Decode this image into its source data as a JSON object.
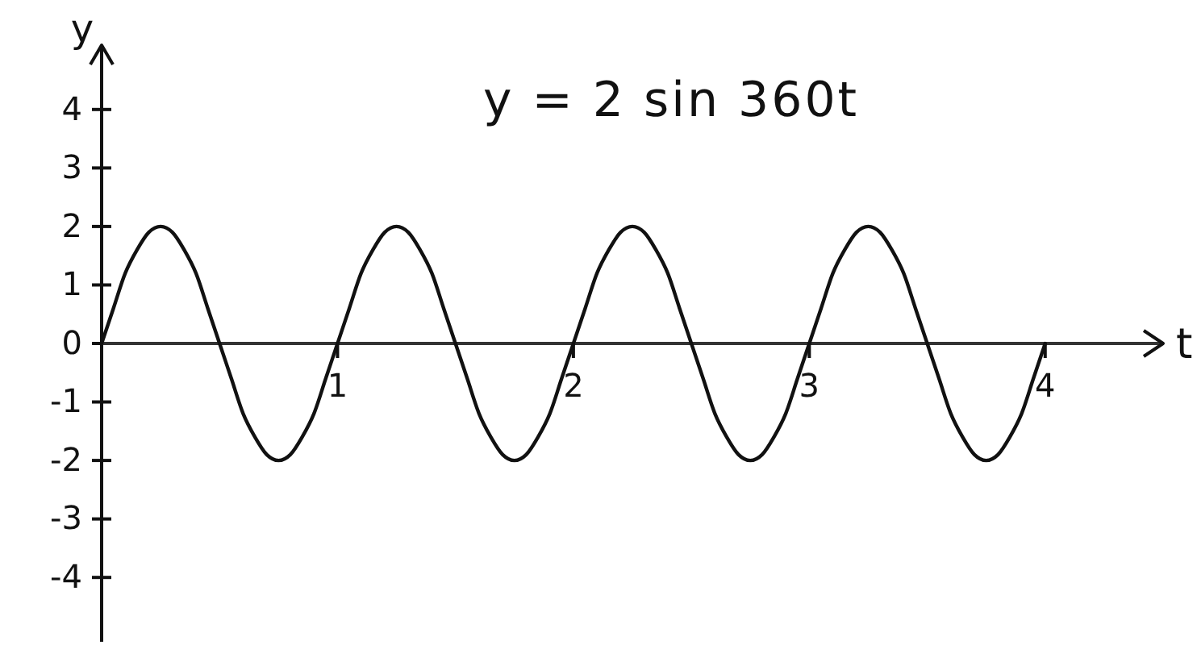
{
  "chart_data": {
    "type": "line",
    "title": "y = 2 sin 360t",
    "xlabel": "t",
    "ylabel": "y",
    "x": [
      0,
      0.05,
      0.1,
      0.15,
      0.2,
      0.25,
      0.3,
      0.35,
      0.4,
      0.45,
      0.5,
      0.55,
      0.6,
      0.65,
      0.7,
      0.75,
      0.8,
      0.85,
      0.9,
      0.95,
      1,
      1.05,
      1.1,
      1.15,
      1.2,
      1.25,
      1.3,
      1.35,
      1.4,
      1.45,
      1.5,
      1.55,
      1.6,
      1.65,
      1.7,
      1.75,
      1.8,
      1.85,
      1.9,
      1.95,
      2,
      2.05,
      2.1,
      2.15,
      2.2,
      2.25,
      2.3,
      2.35,
      2.4,
      2.45,
      2.5,
      2.55,
      2.6,
      2.65,
      2.7,
      2.75,
      2.8,
      2.85,
      2.9,
      2.95,
      3,
      3.05,
      3.1,
      3.15,
      3.2,
      3.25,
      3.3,
      3.35,
      3.4,
      3.45,
      3.5,
      3.55,
      3.6,
      3.65,
      3.7,
      3.75,
      3.8,
      3.85,
      3.9,
      3.95,
      4
    ],
    "series": [
      {
        "color": "#111111",
        "values": [
          0,
          0.6,
          1.2,
          1.6,
          1.9,
          2,
          1.9,
          1.6,
          1.2,
          0.6,
          0,
          -0.6,
          -1.2,
          -1.6,
          -1.9,
          -2,
          -1.9,
          -1.6,
          -1.2,
          -0.6,
          0,
          0.6,
          1.2,
          1.6,
          1.9,
          2,
          1.9,
          1.6,
          1.2,
          0.6,
          0,
          -0.6,
          -1.2,
          -1.6,
          -1.9,
          -2,
          -1.9,
          -1.6,
          -1.2,
          -0.6,
          0,
          0.6,
          1.2,
          1.6,
          1.9,
          2,
          1.9,
          1.6,
          1.2,
          0.6,
          0,
          -0.6,
          -1.2,
          -1.6,
          -1.9,
          -2,
          -1.9,
          -1.6,
          -1.2,
          -0.6,
          0,
          0.6,
          1.2,
          1.6,
          1.9,
          2,
          1.9,
          1.6,
          1.2,
          0.6,
          0,
          -0.6,
          -1.2,
          -1.6,
          -1.9,
          -2,
          -1.9,
          -1.6,
          -1.2,
          -0.6,
          0
        ]
      }
    ],
    "xlim": [
      0,
      4.5
    ],
    "xticks": [
      1,
      2,
      3,
      4
    ],
    "ylim": [
      -5.1,
      5.1
    ],
    "yticks": [
      -4,
      -3,
      -2,
      -1,
      0,
      1,
      2,
      3,
      4
    ]
  }
}
